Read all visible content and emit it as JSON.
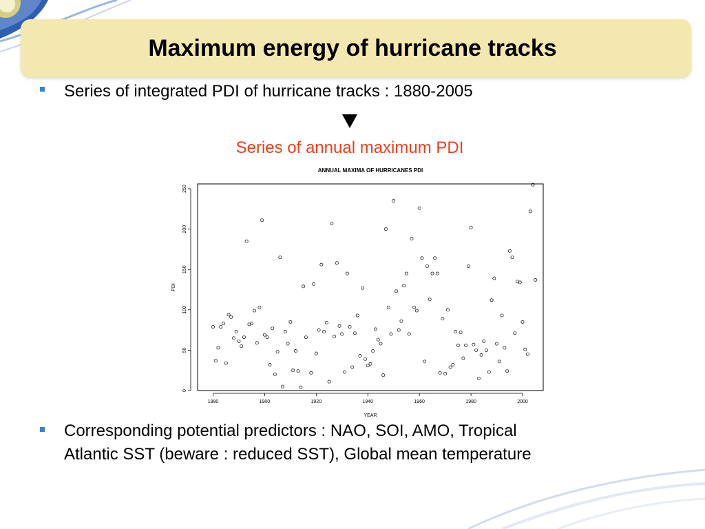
{
  "slide": {
    "title": "Maximum energy of hurricane tracks",
    "bullet1": "Series of integrated PDI of hurricane tracks : 1880-2005",
    "arrow_icon": "down-triangle",
    "subtitle": "Series of annual maximum PDI",
    "bullet2_line1": "Corresponding potential predictors : NAO, SOI, AMO, Tropical",
    "bullet2_line2": "Atlantic SST (beware : reduced SST), Global mean temperature",
    "colors": {
      "title_bar": "#f3e8b0",
      "bullet": "#3e7fd6",
      "subtitle": "#e8411a"
    }
  },
  "chart_data": {
    "type": "scatter",
    "title": "ANNUAL MAXIMA OF HURRICANES PDI",
    "xlabel": "YEAR",
    "ylabel": "PDI",
    "xlim": [
      1874,
      2008
    ],
    "ylim": [
      0,
      256
    ],
    "xticks": [
      1880,
      1900,
      1920,
      1940,
      1960,
      1980,
      2000
    ],
    "yticks": [
      0,
      50,
      100,
      150,
      200,
      250
    ],
    "grid": false,
    "legend": "none",
    "marker": "open-circle",
    "points": [
      [
        1880,
        79
      ],
      [
        1881,
        37
      ],
      [
        1882,
        53
      ],
      [
        1883,
        79
      ],
      [
        1884,
        83
      ],
      [
        1885,
        34
      ],
      [
        1886,
        94
      ],
      [
        1887,
        91
      ],
      [
        1888,
        65
      ],
      [
        1889,
        73
      ],
      [
        1890,
        61
      ],
      [
        1891,
        55
      ],
      [
        1892,
        66
      ],
      [
        1893,
        185
      ],
      [
        1894,
        82
      ],
      [
        1895,
        83
      ],
      [
        1896,
        99
      ],
      [
        1897,
        59
      ],
      [
        1898,
        103
      ],
      [
        1899,
        211
      ],
      [
        1900,
        69
      ],
      [
        1901,
        66
      ],
      [
        1902,
        32
      ],
      [
        1903,
        77
      ],
      [
        1904,
        20
      ],
      [
        1905,
        48
      ],
      [
        1906,
        165
      ],
      [
        1907,
        5
      ],
      [
        1908,
        73
      ],
      [
        1909,
        58
      ],
      [
        1910,
        85
      ],
      [
        1911,
        25
      ],
      [
        1912,
        49
      ],
      [
        1913,
        24
      ],
      [
        1914,
        4
      ],
      [
        1915,
        129
      ],
      [
        1916,
        66
      ],
      [
        1918,
        22
      ],
      [
        1919,
        132
      ],
      [
        1920,
        46
      ],
      [
        1921,
        75
      ],
      [
        1922,
        156
      ],
      [
        1923,
        73
      ],
      [
        1924,
        84
      ],
      [
        1925,
        11
      ],
      [
        1926,
        207
      ],
      [
        1927,
        67
      ],
      [
        1928,
        158
      ],
      [
        1929,
        80
      ],
      [
        1930,
        70
      ],
      [
        1931,
        23
      ],
      [
        1932,
        145
      ],
      [
        1933,
        79
      ],
      [
        1934,
        29
      ],
      [
        1935,
        71
      ],
      [
        1936,
        93
      ],
      [
        1937,
        43
      ],
      [
        1938,
        127
      ],
      [
        1939,
        39
      ],
      [
        1940,
        31
      ],
      [
        1941,
        33
      ],
      [
        1942,
        49
      ],
      [
        1943,
        76
      ],
      [
        1944,
        63
      ],
      [
        1945,
        58
      ],
      [
        1946,
        19
      ],
      [
        1947,
        200
      ],
      [
        1948,
        103
      ],
      [
        1949,
        70
      ],
      [
        1950,
        235
      ],
      [
        1951,
        123
      ],
      [
        1952,
        75
      ],
      [
        1953,
        86
      ],
      [
        1954,
        130
      ],
      [
        1955,
        145
      ],
      [
        1956,
        70
      ],
      [
        1957,
        188
      ],
      [
        1958,
        103
      ],
      [
        1959,
        99
      ],
      [
        1960,
        226
      ],
      [
        1961,
        164
      ],
      [
        1962,
        36
      ],
      [
        1963,
        154
      ],
      [
        1964,
        113
      ],
      [
        1965,
        145
      ],
      [
        1966,
        164
      ],
      [
        1967,
        145
      ],
      [
        1968,
        22
      ],
      [
        1969,
        89
      ],
      [
        1970,
        21
      ],
      [
        1971,
        100
      ],
      [
        1972,
        29
      ],
      [
        1973,
        32
      ],
      [
        1974,
        73
      ],
      [
        1975,
        56
      ],
      [
        1976,
        72
      ],
      [
        1977,
        40
      ],
      [
        1978,
        56
      ],
      [
        1979,
        154
      ],
      [
        1980,
        202
      ],
      [
        1981,
        57
      ],
      [
        1982,
        50
      ],
      [
        1983,
        15
      ],
      [
        1984,
        44
      ],
      [
        1985,
        61
      ],
      [
        1986,
        50
      ],
      [
        1987,
        23
      ],
      [
        1988,
        112
      ],
      [
        1989,
        139
      ],
      [
        1990,
        58
      ],
      [
        1991,
        36
      ],
      [
        1992,
        93
      ],
      [
        1993,
        53
      ],
      [
        1994,
        24
      ],
      [
        1995,
        173
      ],
      [
        1996,
        165
      ],
      [
        1997,
        71
      ],
      [
        1998,
        135
      ],
      [
        1999,
        134
      ],
      [
        2000,
        85
      ],
      [
        2001,
        51
      ],
      [
        2002,
        45
      ],
      [
        2003,
        222
      ],
      [
        2004,
        255
      ],
      [
        2005,
        137
      ]
    ]
  }
}
